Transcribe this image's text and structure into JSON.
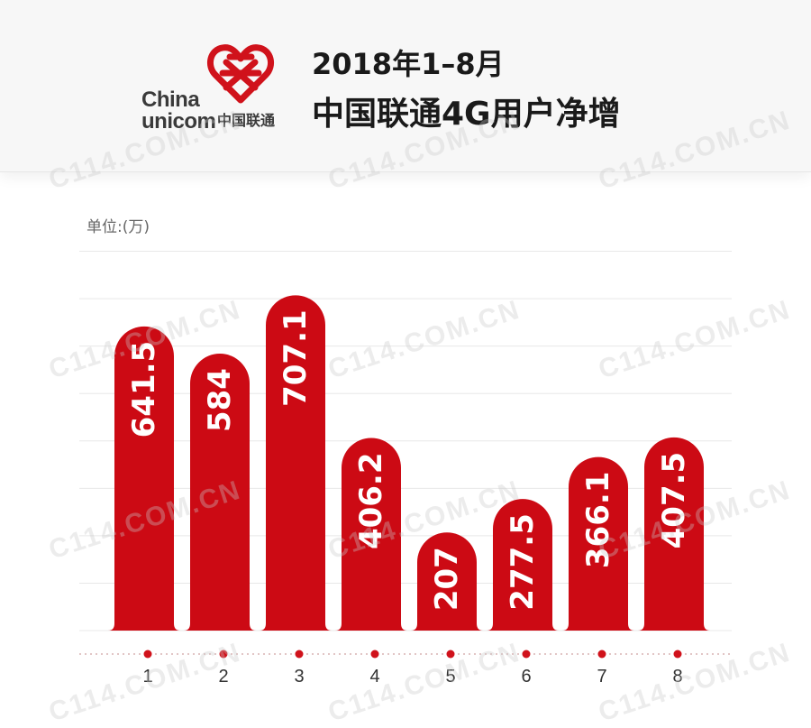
{
  "header": {
    "logo_text_line1": "China",
    "logo_text_line2": "unicom",
    "logo_text_cn": "中国联通",
    "title_line1": "2018年1–8月",
    "title_line2": "中国联通4G用户净增"
  },
  "watermark_text": "C114.COM.CN",
  "colors": {
    "bar": "#cc0a14",
    "accent": "#d0121b",
    "grid": "#e8e8e8"
  },
  "chart_data": {
    "type": "bar",
    "title": "2018年1–8月 中国联通4G用户净增",
    "ylabel": "单位:(万)",
    "categories": [
      "1",
      "2",
      "3",
      "4",
      "5",
      "6",
      "7",
      "8"
    ],
    "values": [
      641.5,
      584,
      707.1,
      406.2,
      207,
      277.5,
      366.1,
      407.5
    ],
    "value_labels": [
      "641.5",
      "584",
      "707.1",
      "406.2",
      "207",
      "277.5",
      "366.1",
      "407.5"
    ],
    "ylim": [
      0,
      800
    ],
    "grid": true,
    "legend": "none"
  }
}
